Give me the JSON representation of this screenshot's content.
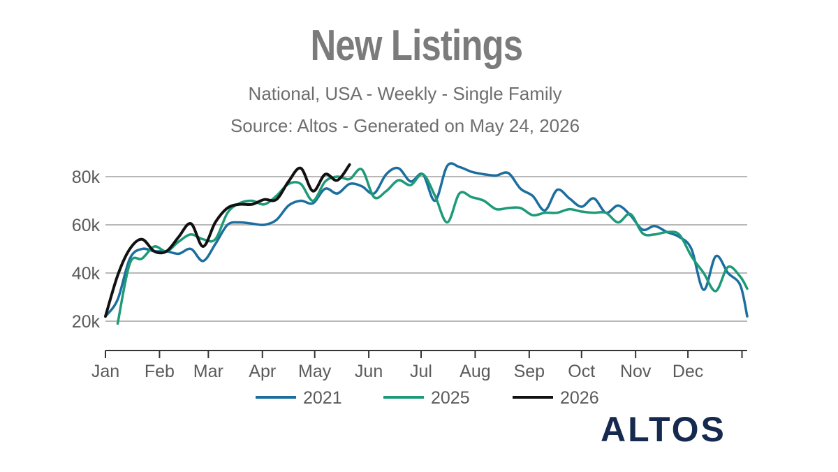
{
  "chart_data": {
    "type": "line",
    "title": "New Listings",
    "subtitle": "National, USA - Weekly - Single Family",
    "source": "Source: Altos - Generated on May 24, 2026",
    "xlabel": "",
    "ylabel": "",
    "x_unit": "day of year",
    "ylim": [
      8000,
      88000
    ],
    "y_ticks": [
      20000,
      40000,
      60000,
      80000
    ],
    "y_tick_labels": [
      "20k",
      "40k",
      "60k",
      "80k"
    ],
    "x_ticks": [
      1,
      32,
      60,
      91,
      121,
      152,
      182,
      213,
      244,
      274,
      305,
      335,
      366
    ],
    "x_tick_labels": [
      "Jan",
      "Feb",
      "Mar",
      "Apr",
      "May",
      "Jun",
      "Jul",
      "Aug",
      "Sep",
      "Oct",
      "Nov",
      "Dec"
    ],
    "grid": "horizontal",
    "legend_position": "bottom",
    "series": [
      {
        "name": "2021",
        "color": "#1b6e9d",
        "points": [
          [
            1,
            22000
          ],
          [
            8,
            29000
          ],
          [
            15,
            46000
          ],
          [
            22,
            50000
          ],
          [
            29,
            49000
          ],
          [
            36,
            49000
          ],
          [
            43,
            48000
          ],
          [
            50,
            50000
          ],
          [
            57,
            45000
          ],
          [
            64,
            52000
          ],
          [
            71,
            60000
          ],
          [
            78,
            61000
          ],
          [
            85,
            60500
          ],
          [
            92,
            60000
          ],
          [
            99,
            62000
          ],
          [
            106,
            68000
          ],
          [
            113,
            70000
          ],
          [
            120,
            69000
          ],
          [
            127,
            75000
          ],
          [
            134,
            73000
          ],
          [
            141,
            77000
          ],
          [
            148,
            76000
          ],
          [
            155,
            73000
          ],
          [
            162,
            81000
          ],
          [
            169,
            83500
          ],
          [
            176,
            78000
          ],
          [
            183,
            81000
          ],
          [
            190,
            70000
          ],
          [
            197,
            84500
          ],
          [
            204,
            84000
          ],
          [
            211,
            82000
          ],
          [
            218,
            81000
          ],
          [
            225,
            80500
          ],
          [
            232,
            81500
          ],
          [
            239,
            75000
          ],
          [
            246,
            72000
          ],
          [
            253,
            66000
          ],
          [
            260,
            74500
          ],
          [
            267,
            71000
          ],
          [
            274,
            67500
          ],
          [
            281,
            71000
          ],
          [
            288,
            65000
          ],
          [
            295,
            68000
          ],
          [
            302,
            64000
          ],
          [
            309,
            58000
          ],
          [
            316,
            59500
          ],
          [
            323,
            57000
          ],
          [
            330,
            55000
          ],
          [
            337,
            50000
          ],
          [
            344,
            33000
          ],
          [
            351,
            47000
          ],
          [
            358,
            40000
          ],
          [
            365,
            35000
          ],
          [
            369,
            22000
          ]
        ]
      },
      {
        "name": "2025",
        "color": "#1e9a78",
        "points": [
          [
            8,
            19000
          ],
          [
            15,
            44000
          ],
          [
            22,
            46000
          ],
          [
            29,
            51000
          ],
          [
            36,
            49000
          ],
          [
            43,
            53000
          ],
          [
            50,
            56000
          ],
          [
            57,
            54000
          ],
          [
            64,
            54000
          ],
          [
            71,
            65000
          ],
          [
            78,
            69000
          ],
          [
            85,
            70000
          ],
          [
            92,
            68500
          ],
          [
            99,
            72000
          ],
          [
            106,
            77000
          ],
          [
            113,
            77000
          ],
          [
            120,
            70000
          ],
          [
            127,
            78000
          ],
          [
            134,
            80000
          ],
          [
            141,
            79000
          ],
          [
            148,
            83000
          ],
          [
            155,
            71500
          ],
          [
            162,
            74000
          ],
          [
            169,
            78500
          ],
          [
            176,
            76500
          ],
          [
            183,
            81000
          ],
          [
            190,
            72000
          ],
          [
            197,
            61000
          ],
          [
            204,
            73000
          ],
          [
            211,
            71500
          ],
          [
            218,
            70000
          ],
          [
            225,
            66500
          ],
          [
            232,
            67000
          ],
          [
            239,
            67000
          ],
          [
            246,
            64000
          ],
          [
            253,
            65000
          ],
          [
            260,
            65000
          ],
          [
            267,
            66500
          ],
          [
            274,
            65500
          ],
          [
            281,
            65000
          ],
          [
            288,
            65000
          ],
          [
            295,
            61000
          ],
          [
            302,
            64500
          ],
          [
            309,
            56500
          ],
          [
            316,
            56000
          ],
          [
            323,
            57000
          ],
          [
            330,
            56000
          ],
          [
            337,
            47000
          ],
          [
            344,
            40000
          ],
          [
            351,
            32500
          ],
          [
            358,
            42500
          ],
          [
            365,
            38500
          ],
          [
            369,
            33500
          ]
        ]
      },
      {
        "name": "2026",
        "color": "#111111",
        "points": [
          [
            1,
            22000
          ],
          [
            8,
            39000
          ],
          [
            15,
            50000
          ],
          [
            22,
            54000
          ],
          [
            29,
            49000
          ],
          [
            36,
            49000
          ],
          [
            43,
            55000
          ],
          [
            50,
            60500
          ],
          [
            57,
            51000
          ],
          [
            64,
            61000
          ],
          [
            71,
            67000
          ],
          [
            78,
            68500
          ],
          [
            85,
            68500
          ],
          [
            92,
            70500
          ],
          [
            99,
            70500
          ],
          [
            106,
            78000
          ],
          [
            113,
            83500
          ],
          [
            120,
            74000
          ],
          [
            127,
            81000
          ],
          [
            134,
            78500
          ],
          [
            141,
            85000
          ]
        ]
      }
    ]
  },
  "legend": [
    {
      "label": "2021",
      "color": "#1b6e9d"
    },
    {
      "label": "2025",
      "color": "#1e9a78"
    },
    {
      "label": "2026",
      "color": "#111111"
    }
  ],
  "brand": {
    "logo_text": "ALTOS",
    "logo_color": "#152a4e"
  }
}
